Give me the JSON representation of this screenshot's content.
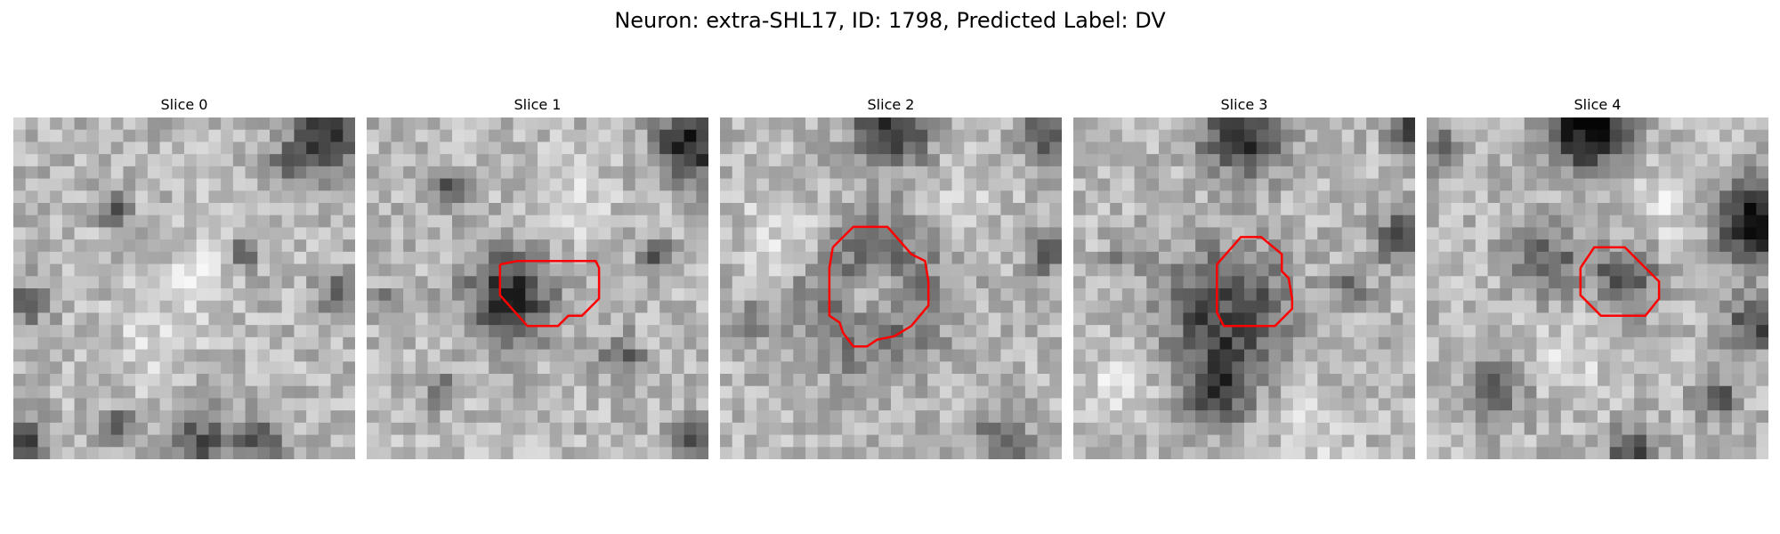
{
  "figure": {
    "title": "Neuron: extra-SHL17, ID: 1798, Predicted Label: DV",
    "contour_color": "#ff0000",
    "colormap": "grayscale",
    "grid_size": 28
  },
  "slices": [
    {
      "label": "Slice 0"
    },
    {
      "label": "Slice 1"
    },
    {
      "label": "Slice 2"
    },
    {
      "label": "Slice 3"
    },
    {
      "label": "Slice 4"
    }
  ]
}
